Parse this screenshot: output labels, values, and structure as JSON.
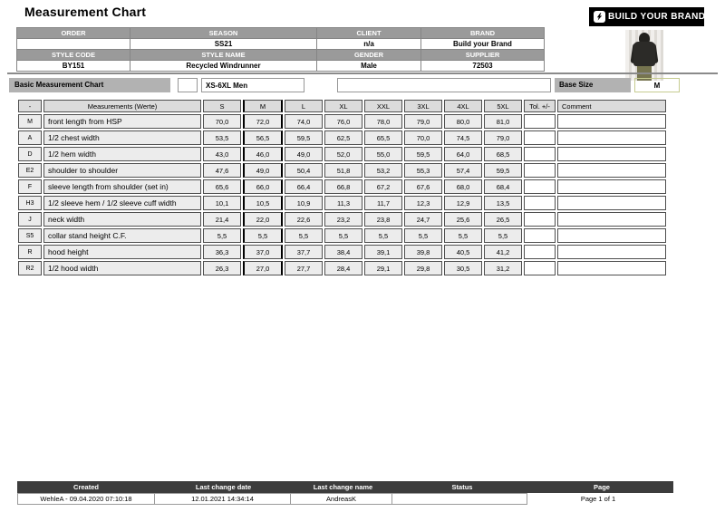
{
  "page": {
    "title": "Measurement Chart"
  },
  "logo": {
    "text": "BUILD YOUR BRAND",
    "icon": "lightning-bolt-icon",
    "bg_color": "#000000"
  },
  "info_table": {
    "rows": [
      {
        "type": "header",
        "cells": [
          "ORDER",
          "SEASON",
          "CLIENT",
          "BRAND"
        ]
      },
      {
        "type": "value",
        "cells": [
          "",
          "SS21",
          "n/a",
          "Build your Brand"
        ]
      },
      {
        "type": "header",
        "cells": [
          "STYLE CODE",
          "STYLE NAME",
          "GENDER",
          "SUPPLIER"
        ]
      },
      {
        "type": "value",
        "cells": [
          "BY151",
          "Recycled Windrunner",
          "Male",
          "72503"
        ]
      }
    ]
  },
  "controls": {
    "section_label": "Basic Measurement Chart",
    "small_field_value": "",
    "size_range_value": "XS-6XL Men",
    "long_field_value": "",
    "base_size_label": "Base Size",
    "base_size_value": "M",
    "base_size_highlight_color": "#ebf1a0"
  },
  "measurement_table": {
    "columns": [
      "-",
      "Measurements (Werte)",
      "S",
      "M",
      "L",
      "XL",
      "XXL",
      "3XL",
      "4XL",
      "5XL",
      "Tol. +/-",
      "Comment"
    ],
    "base_column_index": 3,
    "rows": [
      {
        "code": "M",
        "name": "front length from HSP",
        "values": [
          "70,0",
          "72,0",
          "74,0",
          "76,0",
          "78,0",
          "79,0",
          "80,0",
          "81,0"
        ],
        "tol": "",
        "comment": ""
      },
      {
        "code": "A",
        "name": "1/2 chest width",
        "values": [
          "53,5",
          "56,5",
          "59,5",
          "62,5",
          "65,5",
          "70,0",
          "74,5",
          "79,0"
        ],
        "tol": "",
        "comment": ""
      },
      {
        "code": "D",
        "name": "1/2 hem width",
        "values": [
          "43,0",
          "46,0",
          "49,0",
          "52,0",
          "55,0",
          "59,5",
          "64,0",
          "68,5"
        ],
        "tol": "",
        "comment": ""
      },
      {
        "code": "E2",
        "name": "shoulder to shoulder",
        "values": [
          "47,6",
          "49,0",
          "50,4",
          "51,8",
          "53,2",
          "55,3",
          "57,4",
          "59,5"
        ],
        "tol": "",
        "comment": ""
      },
      {
        "code": "F",
        "name": "sleeve length from shoulder (set in)",
        "values": [
          "65,6",
          "66,0",
          "66,4",
          "66,8",
          "67,2",
          "67,6",
          "68,0",
          "68,4"
        ],
        "tol": "",
        "comment": ""
      },
      {
        "code": "H3",
        "name": "1/2 sleeve hem / 1/2 sleeve cuff width",
        "values": [
          "10,1",
          "10,5",
          "10,9",
          "11,3",
          "11,7",
          "12,3",
          "12,9",
          "13,5"
        ],
        "tol": "",
        "comment": ""
      },
      {
        "code": "J",
        "name": "neck width",
        "values": [
          "21,4",
          "22,0",
          "22,6",
          "23,2",
          "23,8",
          "24,7",
          "25,6",
          "26,5"
        ],
        "tol": "",
        "comment": ""
      },
      {
        "code": "S5",
        "name": "collar stand height C.F.",
        "values": [
          "5,5",
          "5,5",
          "5,5",
          "5,5",
          "5,5",
          "5,5",
          "5,5",
          "5,5"
        ],
        "tol": "",
        "comment": ""
      },
      {
        "code": "R",
        "name": "hood height",
        "values": [
          "36,3",
          "37,0",
          "37,7",
          "38,4",
          "39,1",
          "39,8",
          "40,5",
          "41,2"
        ],
        "tol": "",
        "comment": ""
      },
      {
        "code": "R2",
        "name": "1/2 hood width",
        "values": [
          "26,3",
          "27,0",
          "27,7",
          "28,4",
          "29,1",
          "29,8",
          "30,5",
          "31,2"
        ],
        "tol": "",
        "comment": ""
      }
    ]
  },
  "footer": {
    "columns": [
      {
        "label": "Created",
        "value": "WehleA - 09.04.2020 07:10:18"
      },
      {
        "label": "Last change date",
        "value": "12.01.2021 14:34:14"
      },
      {
        "label": "Last change name",
        "value": "AndreasK"
      },
      {
        "label": "Status",
        "value": ""
      },
      {
        "label": "Page",
        "value": "Page 1 of 1"
      }
    ]
  }
}
